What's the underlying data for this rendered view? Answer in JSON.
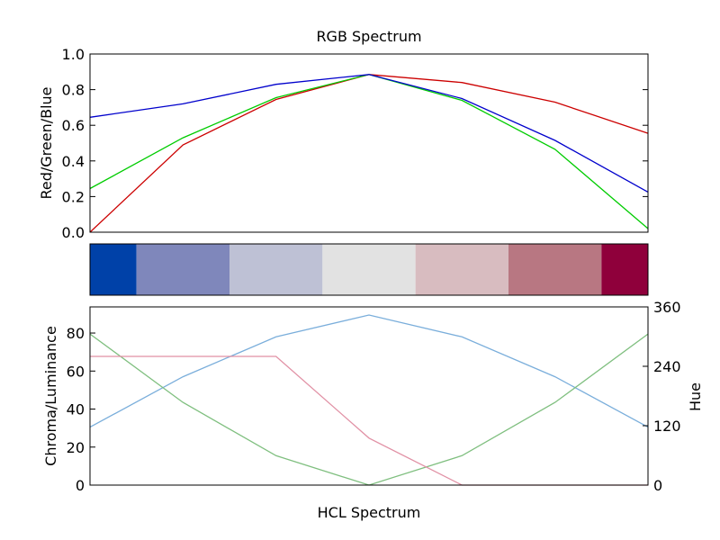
{
  "chart_data": [
    {
      "type": "line",
      "title": "RGB Spectrum",
      "xlabel": "",
      "ylabel": "Red/Green/Blue",
      "ylim": [
        0,
        1
      ],
      "yticks": [
        "0.0",
        "0.2",
        "0.4",
        "0.6",
        "0.8",
        "1.0"
      ],
      "x": [
        0,
        1,
        2,
        3,
        4,
        5,
        6
      ],
      "series": [
        {
          "color": "#cc0000",
          "values": [
            0.0,
            0.49,
            0.745,
            0.885,
            0.84,
            0.73,
            0.555
          ]
        },
        {
          "color": "#00cc00",
          "values": [
            0.245,
            0.53,
            0.755,
            0.885,
            0.74,
            0.465,
            0.02
          ]
        },
        {
          "color": "#0000cc",
          "values": [
            0.645,
            0.72,
            0.83,
            0.885,
            0.75,
            0.515,
            0.225
          ]
        }
      ]
    },
    {
      "type": "heatmap",
      "colors": [
        "#0041a8",
        "#7f87bb",
        "#bec1d5",
        "#e2e2e2",
        "#d8bcc0",
        "#b87782",
        "#8f003b"
      ]
    },
    {
      "type": "line",
      "title": "",
      "xlabel": "HCL Spectrum",
      "ylabel": "Chroma/Luminance",
      "ylabel_right": "Hue",
      "ylim": [
        0,
        93.75
      ],
      "yticks": [
        "0",
        "20",
        "40",
        "60",
        "80"
      ],
      "ylim_right": [
        0,
        360
      ],
      "yticks_right": [
        "0",
        "120",
        "240",
        "360"
      ],
      "x": [
        0,
        1,
        2,
        3,
        4,
        5,
        6
      ],
      "series": [
        {
          "axis": "left",
          "color": "#7aaedb",
          "values": [
            30.5,
            57.0,
            78.0,
            89.5,
            78.0,
            57.0,
            30.5
          ]
        },
        {
          "axis": "left",
          "color": "#7fbf7f",
          "values": [
            79.5,
            43.5,
            15.5,
            0.0,
            15.5,
            43.5,
            79.5
          ]
        },
        {
          "axis": "right",
          "color": "#e191a5",
          "values": [
            260,
            260,
            260,
            95,
            0,
            0,
            0
          ]
        }
      ]
    }
  ]
}
